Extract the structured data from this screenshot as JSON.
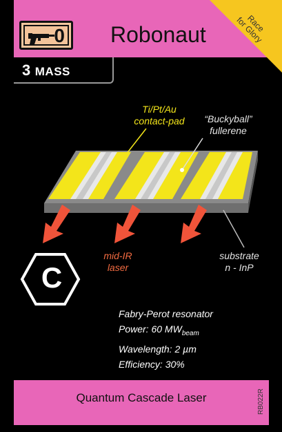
{
  "card": {
    "title": "Robonaut",
    "thrust_value": "0",
    "corner_text_line1": "Race",
    "corner_text_line2": "for Glory",
    "mass_value": "3",
    "mass_label": "MASS",
    "bottom_title": "Quantum Cascade Laser",
    "code": "RB022R"
  },
  "diagram": {
    "label_contact_line1": "Ti/Pt/Au",
    "label_contact_line2": "contact-pad",
    "label_bucky_line1": "“Buckyball”",
    "label_bucky_line2": "fullerene",
    "label_laser_line1": "mid-IR",
    "label_laser_line2": "laser",
    "label_substrate_line1": "substrate",
    "label_substrate_line2": "n - InP"
  },
  "specs": {
    "line1": "Fabry-Perot resonator",
    "line2_prefix": "Power: 60 MW",
    "line2_sub": "beam",
    "line3": "Wavelength: 2 µm",
    "line4": "Efficiency: 30%"
  },
  "spectral_type": "C",
  "colors": {
    "band": "#e866b8",
    "corner": "#f6c61f",
    "yellow": "#f3e51a",
    "orange": "#f26b41"
  }
}
